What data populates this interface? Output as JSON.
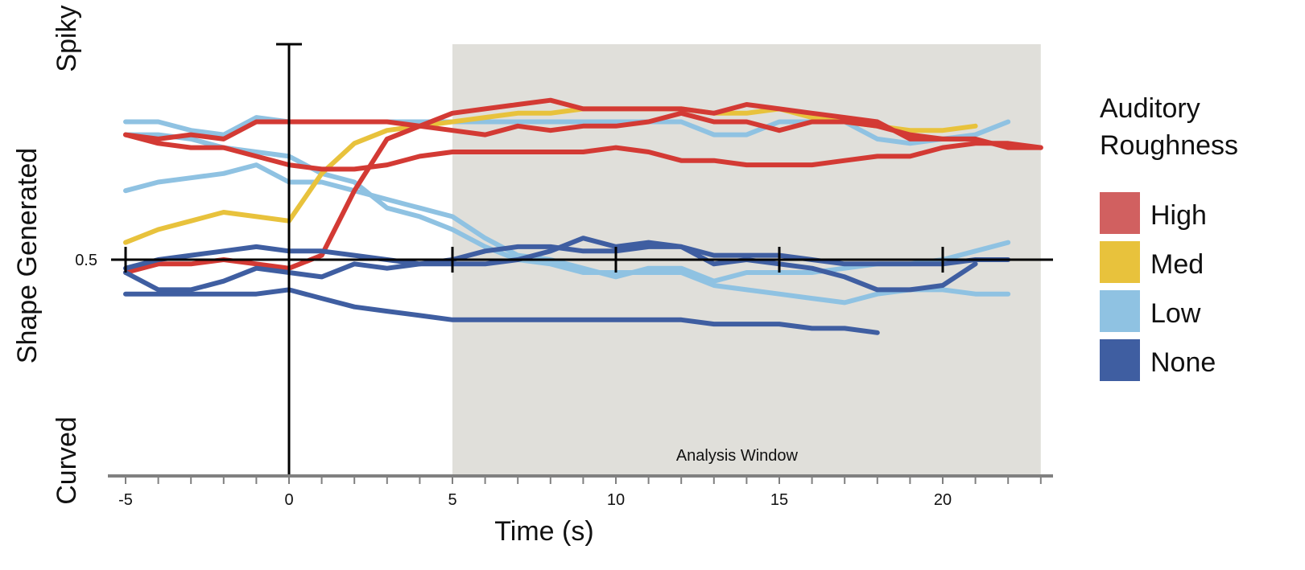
{
  "chart_data": {
    "type": "line",
    "title": "",
    "xlabel": "Time (s)",
    "ylabel": "Shape Generated",
    "y_top_label": "Spiky",
    "y_bottom_label": "Curved",
    "y_mid_tick": "0.5",
    "xlim": [
      -5,
      23
    ],
    "ylim": [
      0,
      1
    ],
    "x_ticks": [
      "-5",
      "0",
      "5",
      "10",
      "15",
      "20"
    ],
    "analysis_window": {
      "label": "Analysis Window",
      "x_start": 5,
      "x_end": 23
    },
    "legend": {
      "title": "Auditory Roughness",
      "entries": [
        {
          "name": "High",
          "color": "#D16060"
        },
        {
          "name": "Med",
          "color": "#E8C23C"
        },
        {
          "name": "Low",
          "color": "#8FC2E2"
        },
        {
          "name": "None",
          "color": "#3F5EA1"
        }
      ]
    },
    "series": [
      {
        "name": "Low",
        "color": "#8FC2E2",
        "x": [
          -5,
          -4,
          -3,
          -2,
          -1,
          0,
          1,
          2,
          3,
          4,
          5,
          6,
          7,
          8,
          9,
          10,
          11,
          12,
          13,
          14,
          15,
          16,
          17,
          18,
          19,
          20,
          21,
          22
        ],
        "y": [
          0.82,
          0.82,
          0.8,
          0.79,
          0.83,
          0.82,
          0.82,
          0.82,
          0.82,
          0.82,
          0.82,
          0.82,
          0.82,
          0.82,
          0.82,
          0.82,
          0.82,
          0.82,
          0.79,
          0.79,
          0.82,
          0.82,
          0.82,
          0.78,
          0.77,
          0.78,
          0.79,
          0.82
        ]
      },
      {
        "name": "Low",
        "color": "#8FC2E2",
        "x": [
          -5,
          -4,
          -3,
          -2,
          -1,
          0,
          1,
          2,
          3,
          4,
          5,
          6,
          7,
          8,
          9,
          10,
          11,
          12,
          13,
          14,
          15,
          16,
          17,
          18,
          19,
          20,
          21,
          22
        ],
        "y": [
          0.79,
          0.79,
          0.78,
          0.76,
          0.75,
          0.74,
          0.7,
          0.68,
          0.62,
          0.6,
          0.57,
          0.53,
          0.5,
          0.49,
          0.47,
          0.47,
          0.47,
          0.47,
          0.44,
          0.43,
          0.42,
          0.41,
          0.4,
          0.42,
          0.43,
          0.43,
          0.42,
          0.42
        ]
      },
      {
        "name": "Low",
        "color": "#8FC2E2",
        "x": [
          -5,
          -4,
          -3,
          -2,
          -1,
          0,
          1,
          2,
          3,
          4,
          5,
          6,
          7,
          8,
          9,
          10,
          11,
          12,
          13,
          14,
          15,
          16,
          17,
          18,
          19,
          20,
          21,
          22
        ],
        "y": [
          0.66,
          0.68,
          0.69,
          0.7,
          0.72,
          0.68,
          0.68,
          0.66,
          0.64,
          0.62,
          0.6,
          0.55,
          0.51,
          0.5,
          0.48,
          0.46,
          0.48,
          0.48,
          0.45,
          0.47,
          0.47,
          0.47,
          0.48,
          0.49,
          0.49,
          0.5,
          0.52,
          0.54
        ]
      },
      {
        "name": "Med",
        "color": "#E8C23C",
        "x": [
          -5,
          -4,
          -3,
          -2,
          -1,
          0,
          1,
          2,
          3,
          4,
          5,
          6,
          7,
          8,
          9,
          10,
          11,
          12,
          13,
          14,
          15,
          16,
          17,
          18,
          19,
          20,
          21
        ],
        "y": [
          0.54,
          0.57,
          0.59,
          0.61,
          0.6,
          0.59,
          0.7,
          0.77,
          0.8,
          0.81,
          0.82,
          0.83,
          0.84,
          0.84,
          0.85,
          0.85,
          0.85,
          0.85,
          0.84,
          0.84,
          0.85,
          0.83,
          0.82,
          0.81,
          0.8,
          0.8,
          0.81
        ]
      },
      {
        "name": "High",
        "color": "#D33A34",
        "x": [
          -5,
          -4,
          -3,
          -2,
          -1,
          0,
          1,
          2,
          3,
          4,
          5,
          6,
          7,
          8,
          9,
          10,
          11,
          12,
          13,
          14,
          15,
          16,
          17,
          18,
          19,
          20,
          21,
          22,
          23
        ],
        "y": [
          0.79,
          0.77,
          0.76,
          0.76,
          0.74,
          0.72,
          0.71,
          0.71,
          0.72,
          0.74,
          0.75,
          0.75,
          0.75,
          0.75,
          0.75,
          0.76,
          0.75,
          0.73,
          0.73,
          0.72,
          0.72,
          0.72,
          0.73,
          0.74,
          0.74,
          0.76,
          0.77,
          0.77,
          0.76
        ]
      },
      {
        "name": "High",
        "color": "#D33A34",
        "x": [
          -5,
          -4,
          -3,
          -2,
          -1,
          0,
          1,
          2,
          3,
          4,
          5,
          6,
          7,
          8,
          9,
          10,
          11,
          12,
          13,
          14,
          15,
          16,
          17,
          18,
          19,
          20,
          21,
          22,
          23
        ],
        "y": [
          0.79,
          0.78,
          0.79,
          0.78,
          0.82,
          0.82,
          0.82,
          0.82,
          0.82,
          0.81,
          0.8,
          0.79,
          0.81,
          0.8,
          0.81,
          0.81,
          0.82,
          0.84,
          0.82,
          0.82,
          0.8,
          0.82,
          0.82,
          0.81,
          0.79,
          0.78,
          0.78,
          0.76,
          0.76
        ]
      },
      {
        "name": "High",
        "color": "#D33A34",
        "x": [
          -5,
          -4,
          -3,
          -2,
          -1,
          0,
          1,
          2,
          3,
          4,
          5,
          6,
          7,
          8,
          9,
          10,
          11,
          12,
          13,
          14,
          15,
          16,
          17,
          18,
          19,
          20,
          21
        ],
        "y": [
          0.47,
          0.49,
          0.49,
          0.5,
          0.49,
          0.48,
          0.51,
          0.66,
          0.78,
          0.81,
          0.84,
          0.85,
          0.86,
          0.87,
          0.85,
          0.85,
          0.85,
          0.85,
          0.84,
          0.86,
          0.85,
          0.84,
          0.83,
          0.82,
          0.78,
          0.78,
          0.78
        ]
      },
      {
        "name": "None",
        "color": "#3F5EA1",
        "x": [
          -5,
          -4,
          -3,
          -2,
          -1,
          0,
          1,
          2,
          3,
          4,
          5,
          6,
          7,
          8,
          9,
          10,
          11,
          12,
          13,
          14,
          15,
          16,
          17,
          18,
          19,
          20,
          21
        ],
        "y": [
          0.47,
          0.43,
          0.43,
          0.45,
          0.48,
          0.47,
          0.46,
          0.49,
          0.48,
          0.49,
          0.49,
          0.49,
          0.5,
          0.52,
          0.55,
          0.53,
          0.54,
          0.53,
          0.49,
          0.5,
          0.49,
          0.48,
          0.46,
          0.43,
          0.43,
          0.44,
          0.49
        ]
      },
      {
        "name": "None",
        "color": "#3F5EA1",
        "x": [
          -5,
          -4,
          -3,
          -2,
          -1,
          0,
          1,
          2,
          3,
          4,
          5,
          6,
          7,
          8,
          9,
          10,
          11,
          12,
          13,
          14,
          15,
          16,
          17,
          18,
          19,
          20,
          21,
          22
        ],
        "y": [
          0.48,
          0.5,
          0.51,
          0.52,
          0.53,
          0.52,
          0.52,
          0.51,
          0.5,
          0.49,
          0.5,
          0.52,
          0.53,
          0.53,
          0.52,
          0.52,
          0.53,
          0.53,
          0.51,
          0.51,
          0.51,
          0.5,
          0.49,
          0.49,
          0.49,
          0.49,
          0.5,
          0.5
        ]
      },
      {
        "name": "None",
        "color": "#3F5EA1",
        "x": [
          -5,
          -4,
          -3,
          -2,
          -1,
          0,
          1,
          2,
          3,
          4,
          5,
          6,
          7,
          8,
          9,
          10,
          11,
          12,
          13,
          14,
          15,
          16,
          17,
          18
        ],
        "y": [
          0.42,
          0.42,
          0.42,
          0.42,
          0.42,
          0.43,
          0.41,
          0.39,
          0.38,
          0.37,
          0.36,
          0.36,
          0.36,
          0.36,
          0.36,
          0.36,
          0.36,
          0.36,
          0.35,
          0.35,
          0.35,
          0.34,
          0.34,
          0.33
        ]
      }
    ]
  }
}
